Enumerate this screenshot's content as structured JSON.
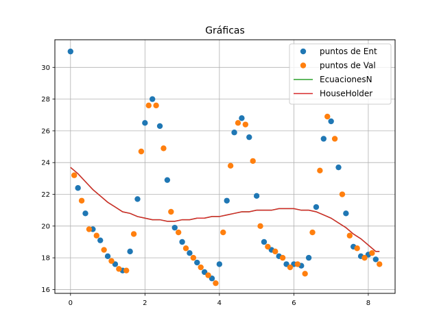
{
  "chart_data": {
    "type": "scatter",
    "title": "Gráficas",
    "xlabel": "",
    "ylabel": "",
    "xlim": [
      -0.42,
      8.72
    ],
    "ylim": [
      15.76,
      31.74
    ],
    "xticks": [
      0,
      2,
      4,
      6,
      8
    ],
    "yticks": [
      16,
      18,
      20,
      22,
      24,
      26,
      28,
      30
    ],
    "grid": true,
    "legend_position": "top-right",
    "series": [
      {
        "name": "puntos de Ent",
        "kind": "scatter",
        "color": "#1f77b4",
        "points": [
          [
            0.0,
            31.0
          ],
          [
            0.2,
            22.4
          ],
          [
            0.4,
            20.8
          ],
          [
            0.6,
            19.8
          ],
          [
            0.8,
            19.1
          ],
          [
            1.0,
            18.1
          ],
          [
            1.2,
            17.6
          ],
          [
            1.4,
            17.2
          ],
          [
            1.6,
            18.4
          ],
          [
            1.8,
            21.7
          ],
          [
            2.0,
            26.5
          ],
          [
            2.2,
            28.0
          ],
          [
            2.4,
            26.3
          ],
          [
            2.6,
            22.9
          ],
          [
            2.8,
            19.9
          ],
          [
            3.0,
            19.0
          ],
          [
            3.2,
            18.3
          ],
          [
            3.4,
            17.7
          ],
          [
            3.6,
            17.1
          ],
          [
            3.8,
            16.7
          ],
          [
            4.0,
            17.6
          ],
          [
            4.2,
            21.6
          ],
          [
            4.4,
            25.9
          ],
          [
            4.6,
            26.8
          ],
          [
            4.8,
            25.6
          ],
          [
            5.0,
            21.9
          ],
          [
            5.2,
            19.0
          ],
          [
            5.4,
            18.5
          ],
          [
            5.6,
            18.1
          ],
          [
            5.8,
            17.6
          ],
          [
            6.0,
            17.6
          ],
          [
            6.2,
            17.5
          ],
          [
            6.4,
            18.0
          ],
          [
            6.6,
            21.2
          ],
          [
            6.8,
            25.5
          ],
          [
            7.0,
            26.6
          ],
          [
            7.2,
            23.7
          ],
          [
            7.4,
            20.8
          ],
          [
            7.6,
            18.7
          ],
          [
            7.8,
            18.1
          ],
          [
            8.0,
            18.2
          ],
          [
            8.2,
            17.9
          ]
        ]
      },
      {
        "name": "puntos de Val",
        "kind": "scatter",
        "color": "#ff7f0e",
        "points": [
          [
            0.1,
            23.2
          ],
          [
            0.3,
            21.6
          ],
          [
            0.5,
            19.8
          ],
          [
            0.7,
            19.4
          ],
          [
            0.9,
            18.5
          ],
          [
            1.1,
            17.8
          ],
          [
            1.3,
            17.3
          ],
          [
            1.5,
            17.2
          ],
          [
            1.7,
            19.5
          ],
          [
            1.9,
            24.7
          ],
          [
            2.1,
            27.6
          ],
          [
            2.3,
            27.6
          ],
          [
            2.5,
            24.9
          ],
          [
            2.7,
            20.9
          ],
          [
            2.9,
            19.6
          ],
          [
            3.1,
            18.6
          ],
          [
            3.3,
            18.0
          ],
          [
            3.5,
            17.4
          ],
          [
            3.7,
            16.9
          ],
          [
            3.9,
            16.4
          ],
          [
            4.1,
            19.6
          ],
          [
            4.3,
            23.8
          ],
          [
            4.5,
            26.5
          ],
          [
            4.7,
            26.4
          ],
          [
            4.9,
            24.1
          ],
          [
            5.1,
            20.0
          ],
          [
            5.3,
            18.7
          ],
          [
            5.5,
            18.4
          ],
          [
            5.7,
            18.0
          ],
          [
            5.9,
            17.4
          ],
          [
            6.1,
            17.6
          ],
          [
            6.3,
            17.0
          ],
          [
            6.5,
            19.6
          ],
          [
            6.7,
            23.5
          ],
          [
            6.9,
            26.9
          ],
          [
            7.1,
            25.5
          ],
          [
            7.3,
            22.0
          ],
          [
            7.5,
            19.4
          ],
          [
            7.7,
            18.6
          ],
          [
            7.9,
            18.0
          ],
          [
            8.1,
            18.3
          ],
          [
            8.3,
            17.6
          ]
        ]
      },
      {
        "name": "EcuacionesN",
        "kind": "line",
        "color": "#2ca02c",
        "points": [
          [
            0.0,
            23.7
          ],
          [
            0.2,
            23.3
          ],
          [
            0.4,
            22.8
          ],
          [
            0.6,
            22.3
          ],
          [
            0.8,
            21.9
          ],
          [
            1.0,
            21.5
          ],
          [
            1.2,
            21.2
          ],
          [
            1.4,
            20.9
          ],
          [
            1.6,
            20.8
          ],
          [
            1.8,
            20.6
          ],
          [
            2.0,
            20.5
          ],
          [
            2.2,
            20.4
          ],
          [
            2.4,
            20.4
          ],
          [
            2.6,
            20.3
          ],
          [
            2.8,
            20.3
          ],
          [
            3.0,
            20.4
          ],
          [
            3.2,
            20.4
          ],
          [
            3.4,
            20.5
          ],
          [
            3.6,
            20.5
          ],
          [
            3.8,
            20.6
          ],
          [
            4.0,
            20.6
          ],
          [
            4.2,
            20.7
          ],
          [
            4.4,
            20.8
          ],
          [
            4.6,
            20.9
          ],
          [
            4.8,
            20.9
          ],
          [
            5.0,
            21.0
          ],
          [
            5.2,
            21.0
          ],
          [
            5.4,
            21.0
          ],
          [
            5.6,
            21.1
          ],
          [
            5.8,
            21.1
          ],
          [
            6.0,
            21.1
          ],
          [
            6.2,
            21.0
          ],
          [
            6.4,
            21.0
          ],
          [
            6.6,
            20.9
          ],
          [
            6.8,
            20.7
          ],
          [
            7.0,
            20.5
          ],
          [
            7.2,
            20.2
          ],
          [
            7.4,
            19.9
          ],
          [
            7.6,
            19.5
          ],
          [
            7.8,
            19.2
          ],
          [
            8.0,
            18.8
          ],
          [
            8.2,
            18.4
          ],
          [
            8.3,
            18.4
          ]
        ]
      },
      {
        "name": "HouseHolder",
        "kind": "line",
        "color": "#d62728",
        "points": [
          [
            0.0,
            23.7
          ],
          [
            0.2,
            23.3
          ],
          [
            0.4,
            22.8
          ],
          [
            0.6,
            22.3
          ],
          [
            0.8,
            21.9
          ],
          [
            1.0,
            21.5
          ],
          [
            1.2,
            21.2
          ],
          [
            1.4,
            20.9
          ],
          [
            1.6,
            20.8
          ],
          [
            1.8,
            20.6
          ],
          [
            2.0,
            20.5
          ],
          [
            2.2,
            20.4
          ],
          [
            2.4,
            20.4
          ],
          [
            2.6,
            20.3
          ],
          [
            2.8,
            20.3
          ],
          [
            3.0,
            20.4
          ],
          [
            3.2,
            20.4
          ],
          [
            3.4,
            20.5
          ],
          [
            3.6,
            20.5
          ],
          [
            3.8,
            20.6
          ],
          [
            4.0,
            20.6
          ],
          [
            4.2,
            20.7
          ],
          [
            4.4,
            20.8
          ],
          [
            4.6,
            20.9
          ],
          [
            4.8,
            20.9
          ],
          [
            5.0,
            21.0
          ],
          [
            5.2,
            21.0
          ],
          [
            5.4,
            21.0
          ],
          [
            5.6,
            21.1
          ],
          [
            5.8,
            21.1
          ],
          [
            6.0,
            21.1
          ],
          [
            6.2,
            21.0
          ],
          [
            6.4,
            21.0
          ],
          [
            6.6,
            20.9
          ],
          [
            6.8,
            20.7
          ],
          [
            7.0,
            20.5
          ],
          [
            7.2,
            20.2
          ],
          [
            7.4,
            19.9
          ],
          [
            7.6,
            19.5
          ],
          [
            7.8,
            19.2
          ],
          [
            8.0,
            18.8
          ],
          [
            8.2,
            18.4
          ],
          [
            8.3,
            18.4
          ]
        ]
      }
    ]
  }
}
